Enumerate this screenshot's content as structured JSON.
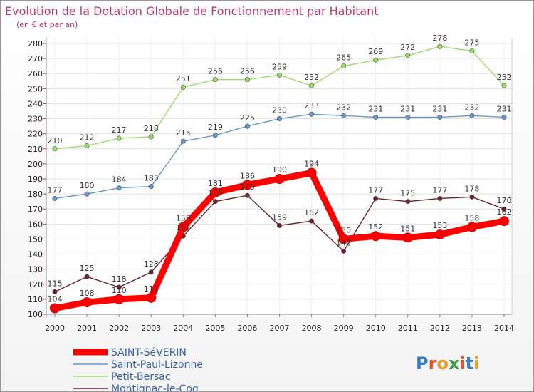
{
  "chart_data": {
    "type": "line",
    "title": "Evolution de la Dotation Globale de Fonctionnement par Habitant",
    "subtitle": "(en € et par an)",
    "xlabel": "",
    "ylabel": "",
    "ylim": [
      100,
      280
    ],
    "yticks": [
      "100",
      "110",
      "120",
      "130",
      "140",
      "150",
      "160",
      "170",
      "180",
      "190",
      "200",
      "210",
      "220",
      "230",
      "240",
      "250",
      "260",
      "270",
      "280"
    ],
    "categories": [
      "2000",
      "2001",
      "2002",
      "2003",
      "2004",
      "2005",
      "2006",
      "2007",
      "2008",
      "2009",
      "2010",
      "2011",
      "2012",
      "2013",
      "2014"
    ],
    "grid": true,
    "legend_position": "bottom-left",
    "series": [
      {
        "name": "SAINT-SéVERIN",
        "color": "#ff0000",
        "values": [
          104,
          108,
          110,
          111,
          158,
          181,
          186,
          190,
          194,
          150,
          152,
          151,
          153,
          158,
          162
        ]
      },
      {
        "name": "Saint-Paul-Lizonne",
        "color": "#6699cc",
        "values": [
          177,
          180,
          184,
          185,
          215,
          219,
          225,
          230,
          233,
          232,
          231,
          231,
          231,
          232,
          231
        ]
      },
      {
        "name": "Petit-Bersac",
        "color": "#99dd66",
        "values": [
          210,
          212,
          217,
          218,
          251,
          256,
          256,
          259,
          252,
          265,
          269,
          272,
          278,
          275,
          252
        ]
      },
      {
        "name": "Montignac-le-Coq",
        "color": "#6b1f28",
        "values": [
          115,
          125,
          118,
          128,
          152,
          175,
          179,
          159,
          162,
          142,
          177,
          175,
          177,
          178,
          170
        ]
      }
    ]
  },
  "watermark": "Proxiti"
}
